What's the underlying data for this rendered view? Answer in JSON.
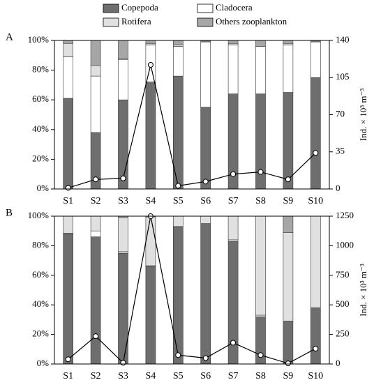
{
  "chart_data": [
    {
      "type": "bar",
      "stacked": true,
      "label": "A",
      "categories": [
        "S1",
        "S2",
        "S3",
        "S4",
        "S5",
        "S6",
        "S7",
        "S8",
        "S9",
        "S10"
      ],
      "ylim": [
        0,
        100
      ],
      "yticks": [
        {
          "value": 0,
          "label": "0%"
        },
        {
          "value": 20,
          "label": "20%"
        },
        {
          "value": 40,
          "label": "40%"
        },
        {
          "value": 60,
          "label": "60%"
        },
        {
          "value": 80,
          "label": "80%"
        },
        {
          "value": 100,
          "label": "100%"
        }
      ],
      "y2label": "Ind. × 10³ m⁻³",
      "y2lim": [
        0,
        140
      ],
      "y2ticks": [
        0,
        35,
        70,
        105,
        140
      ],
      "series": [
        {
          "name": "Copepoda",
          "color": "#6e6e6e",
          "values": [
            61,
            38,
            60,
            72,
            76,
            55,
            64,
            64,
            65,
            75
          ]
        },
        {
          "name": "Cladocera",
          "color": "#ffffff",
          "values": [
            28,
            38,
            27,
            25,
            20,
            44,
            33,
            32,
            32,
            24
          ]
        },
        {
          "name": "Rotifera",
          "color": "#e0e0e0",
          "values": [
            9,
            7,
            1,
            1,
            1,
            0.5,
            1,
            0,
            1,
            0.5
          ]
        },
        {
          "name": "Others zooplankton",
          "color": "#a6a6a6",
          "values": [
            2,
            17,
            12,
            2,
            3,
            0.5,
            2,
            4,
            2,
            0.5
          ]
        },
        {
          "type": "line",
          "axis": "y2",
          "color": "#000000",
          "values": [
            1,
            9,
            10,
            117,
            3,
            7,
            14,
            16,
            9,
            34
          ]
        }
      ]
    },
    {
      "type": "bar",
      "stacked": true,
      "label": "B",
      "categories": [
        "S1",
        "S2",
        "S3",
        "S4",
        "S5",
        "S6",
        "S7",
        "S8",
        "S9",
        "S10"
      ],
      "ylim": [
        0,
        100
      ],
      "yticks": [
        {
          "value": 0,
          "label": "0%"
        },
        {
          "value": 20,
          "label": "20%"
        },
        {
          "value": 40,
          "label": "40%"
        },
        {
          "value": 60,
          "label": "60%"
        },
        {
          "value": 80,
          "label": "80%"
        },
        {
          "value": 100,
          "label": "100%"
        }
      ],
      "y2label": "Ind. × 10³ m⁻³",
      "y2lim": [
        0,
        1250
      ],
      "y2ticks": [
        0,
        250,
        500,
        750,
        1000,
        1250
      ],
      "series": [
        {
          "color": "#6e6e6e",
          "values": [
            88,
            86,
            75,
            66,
            93,
            95,
            83,
            32,
            29,
            38
          ]
        },
        {
          "color": "#ffffff",
          "values": [
            0.5,
            4,
            1,
            0.5,
            0,
            0,
            1,
            1,
            0,
            0
          ]
        },
        {
          "color": "#e0e0e0",
          "values": [
            11.5,
            10,
            23,
            33,
            7,
            5,
            16,
            67,
            60,
            62
          ]
        },
        {
          "color": "#a6a6a6",
          "values": [
            0,
            0,
            1,
            0.5,
            0,
            0,
            0,
            0,
            11,
            0
          ]
        },
        {
          "type": "line",
          "axis": "y2",
          "color": "#000000",
          "values": [
            40,
            235,
            10,
            1250,
            75,
            50,
            180,
            75,
            5,
            130
          ]
        }
      ]
    }
  ]
}
